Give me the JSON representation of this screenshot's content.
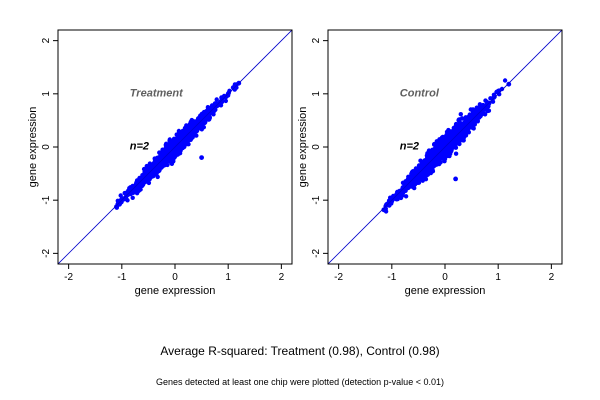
{
  "chart_data": [
    {
      "type": "scatter",
      "annotation_title": "Treatment",
      "annotation_n": "n=2",
      "xlabel": "gene expression",
      "ylabel": "gene expression",
      "xlim": [
        -2.2,
        2.2
      ],
      "ylim": [
        -2.2,
        2.2
      ],
      "xticks": [
        -2,
        -1,
        0,
        1,
        2
      ],
      "yticks": [
        -2,
        -1,
        0,
        1,
        2
      ],
      "identity_line": true,
      "point_count": 1800,
      "x_range": [
        -1.1,
        1.2
      ],
      "spread_sd": 0.07,
      "sample_points": [
        [
          -1.1,
          -1.12
        ],
        [
          -1.0,
          -1.0
        ],
        [
          -0.8,
          -0.78
        ],
        [
          -0.5,
          -0.52
        ],
        [
          -0.3,
          -0.2
        ],
        [
          0,
          0.02
        ],
        [
          0.2,
          0.22
        ],
        [
          0.4,
          0.35
        ],
        [
          0.5,
          -0.2
        ],
        [
          0.6,
          0.62
        ],
        [
          0.8,
          0.78
        ],
        [
          1.0,
          1.0
        ],
        [
          1.2,
          1.2
        ]
      ]
    },
    {
      "type": "scatter",
      "annotation_title": "Control",
      "annotation_n": "n=2",
      "xlabel": "gene expression",
      "ylabel": "gene expression",
      "xlim": [
        -2.2,
        2.2
      ],
      "ylim": [
        -2.2,
        2.2
      ],
      "xticks": [
        -2,
        -1,
        0,
        1,
        2
      ],
      "yticks": [
        -2,
        -1,
        0,
        1,
        2
      ],
      "identity_line": true,
      "point_count": 1800,
      "x_range": [
        -1.15,
        1.2
      ],
      "spread_sd": 0.085,
      "sample_points": [
        [
          -1.15,
          -1.18
        ],
        [
          -1.0,
          -1.02
        ],
        [
          -0.8,
          -0.8
        ],
        [
          -0.5,
          -0.48
        ],
        [
          -0.2,
          0.05
        ],
        [
          0,
          -0.02
        ],
        [
          0.2,
          -0.6
        ],
        [
          0.3,
          0.32
        ],
        [
          0.5,
          0.52
        ],
        [
          0.8,
          0.82
        ],
        [
          1.0,
          1.05
        ],
        [
          1.2,
          1.18
        ]
      ]
    }
  ],
  "colors": {
    "points": "#0000ff",
    "identity_line": "#0000cc",
    "annotation_title": "#606060"
  },
  "summary": "Average R-squared: Treatment (0.98), Control (0.98)",
  "footnote": "Genes detected at least one chip were plotted (detection p-value < 0.01)"
}
